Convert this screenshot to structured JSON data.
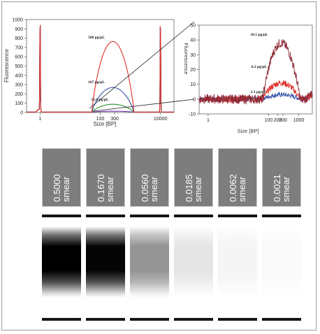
{
  "electropherogram": {
    "ylabel": "Fluorescence",
    "xlabel": "Size [BP]",
    "y_ticks": [
      "0",
      "100",
      "200",
      "300",
      "400",
      "500",
      "600",
      "700",
      "800",
      "900",
      "1000"
    ],
    "x_ticks": [
      "1",
      "100",
      "300",
      "10000"
    ],
    "annotations": [
      "500 pg/µL",
      "167 pg/µL",
      "55.6 pg/µL"
    ]
  },
  "inset": {
    "ylabel": "Fluorescence",
    "xlabel": "Size [BP]",
    "y_ticks": [
      "50",
      "40",
      "30",
      "20",
      "10",
      "0",
      "-10"
    ],
    "x_ticks": [
      "1",
      "100",
      "200",
      "300",
      "1000"
    ],
    "annotations": [
      "18.5 pg/µL",
      "6.2 pg/µL",
      "2.1 pg/µL"
    ]
  },
  "gel": {
    "lanes": [
      {
        "conc": "0.5000",
        "label": "smear",
        "intensity": 1.0
      },
      {
        "conc": "0.1670",
        "label": "smear",
        "intensity": 0.98
      },
      {
        "conc": "0.0560",
        "label": "smear",
        "intensity": 0.42
      },
      {
        "conc": "0.0185",
        "label": "smear",
        "intensity": 0.1
      },
      {
        "conc": "0.0062",
        "label": "smear",
        "intensity": 0.04
      },
      {
        "conc": "0.0021",
        "label": "smear",
        "intensity": 0.02
      }
    ]
  },
  "chart_data": [
    {
      "type": "line",
      "xlabel": "Size [BP]",
      "ylabel": "Fluorescence",
      "x_scale": "log",
      "ylim": [
        0,
        1000
      ],
      "series": [
        {
          "name": "500 pg/µL",
          "color": "#e0312b",
          "peak_bp": 300,
          "peak": 760
        },
        {
          "name": "167 pg/µL",
          "color": "#3451a8",
          "peak_bp": 300,
          "peak": 265
        },
        {
          "name": "55.6 pg/µL",
          "color": "#2f8f2f",
          "peak_bp": 300,
          "peak": 85
        },
        {
          "name": "",
          "color": "#6a2fa0",
          "peak_bp": 300,
          "peak": 10
        }
      ],
      "marker_peaks_bp": [
        1,
        10000
      ]
    },
    {
      "type": "line",
      "xlabel": "Size [BP]",
      "ylabel": "Fluorescence",
      "x_scale": "log",
      "ylim": [
        -10,
        50
      ],
      "series": [
        {
          "name": "18.5 pg/µL",
          "color": "#8b2a35",
          "peak_bp": 300,
          "peak": 38
        },
        {
          "name": "6.2 pg/µL",
          "color": "#e0312b",
          "peak_bp": 300,
          "peak": 11
        },
        {
          "name": "2.1 pg/µL",
          "color": "#3451a8",
          "peak_bp": 300,
          "peak": 3
        }
      ]
    }
  ]
}
